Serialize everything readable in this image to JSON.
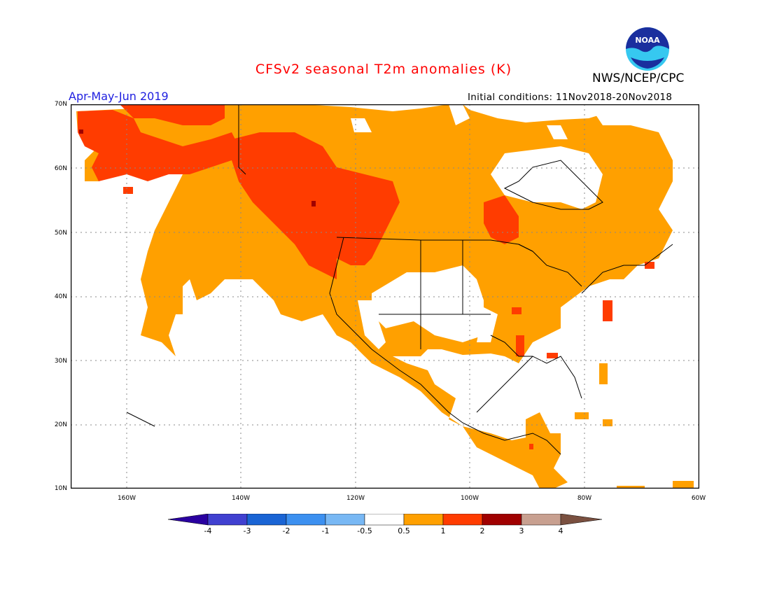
{
  "title": "CFSv2 seasonal T2m anomalies (K)",
  "org": "NWS/NCEP/CPC",
  "logo_text": "NOAA",
  "season": "Apr-May-Jun 2019",
  "initial_conditions": "Initial conditions: 11Nov2018-20Nov2018",
  "colors": {
    "title": "#ff0000",
    "season": "#2020e0",
    "scale": [
      "#2a00a0",
      "#4040d0",
      "#1a64d4",
      "#3c90f0",
      "#78b8f4",
      "#ffffff",
      "#ffa000",
      "#ff3c00",
      "#a00000",
      "#c8a090",
      "#7a5040"
    ]
  },
  "lat_labels": [
    "70N",
    "60N",
    "50N",
    "40N",
    "30N",
    "20N",
    "10N"
  ],
  "lon_labels": [
    "160W",
    "140W",
    "120W",
    "100W",
    "80W",
    "60W"
  ],
  "colorbar_labels": [
    "-4",
    "-3",
    "-2",
    "-1",
    "-0.5",
    "0.5",
    "1",
    "2",
    "3",
    "4"
  ]
}
